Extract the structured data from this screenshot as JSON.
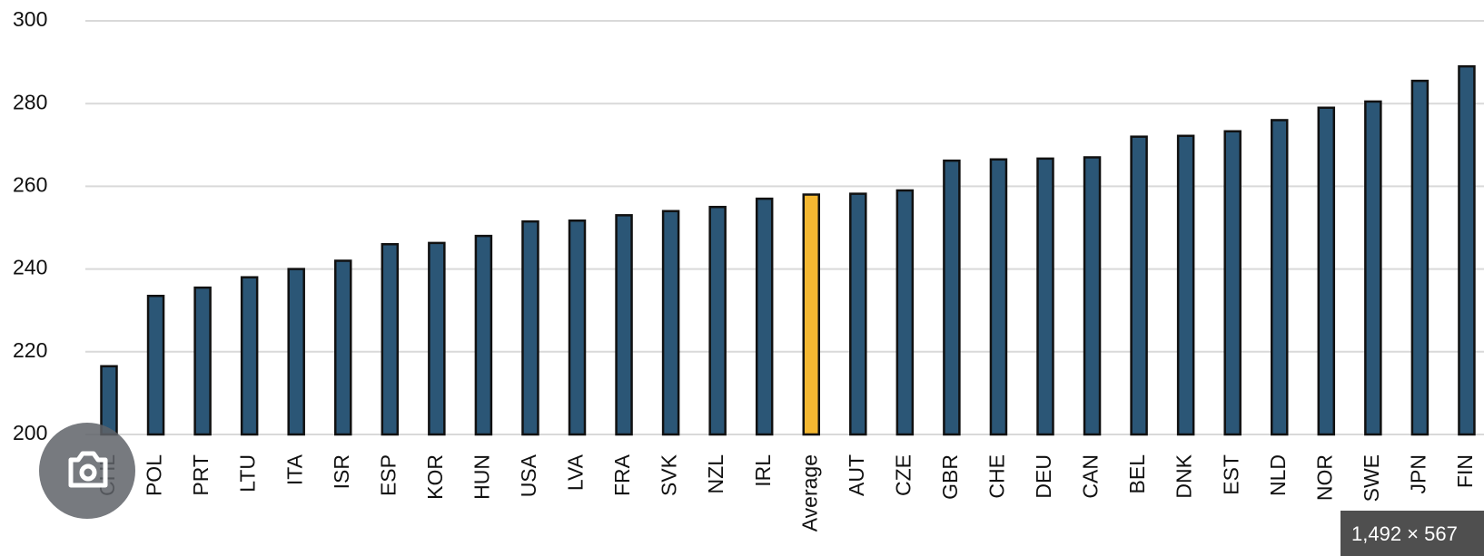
{
  "chart_data": {
    "type": "bar",
    "categories": [
      "CHL",
      "POL",
      "PRT",
      "LTU",
      "ITA",
      "ISR",
      "ESP",
      "KOR",
      "HUN",
      "USA",
      "LVA",
      "FRA",
      "SVK",
      "NZL",
      "IRL",
      "Average",
      "AUT",
      "CZE",
      "GBR",
      "CHE",
      "DEU",
      "CAN",
      "BEL",
      "DNK",
      "EST",
      "NLD",
      "NOR",
      "SWE",
      "JPN",
      "FIN"
    ],
    "values": [
      216.5,
      233.5,
      235.5,
      238,
      240,
      242,
      246,
      246.3,
      248,
      251.5,
      251.7,
      253,
      254,
      255,
      257,
      258,
      258.2,
      259,
      266.2,
      266.5,
      266.7,
      267,
      272,
      272.2,
      273.3,
      276,
      279,
      280.5,
      285.5,
      289
    ],
    "colors": [
      "#2b5676",
      "#2b5676",
      "#2b5676",
      "#2b5676",
      "#2b5676",
      "#2b5676",
      "#2b5676",
      "#2b5676",
      "#2b5676",
      "#2b5676",
      "#2b5676",
      "#2b5676",
      "#2b5676",
      "#2b5676",
      "#2b5676",
      "#f4b731",
      "#2b5676",
      "#2b5676",
      "#2b5676",
      "#2b5676",
      "#2b5676",
      "#2b5676",
      "#2b5676",
      "#2b5676",
      "#2b5676",
      "#2b5676",
      "#2b5676",
      "#2b5676",
      "#2b5676",
      "#2b5676"
    ],
    "ylim": [
      200,
      300
    ],
    "yticks": [
      200,
      220,
      240,
      260,
      280,
      300
    ],
    "grid": true
  },
  "image_size_label": "1,492 × 567"
}
